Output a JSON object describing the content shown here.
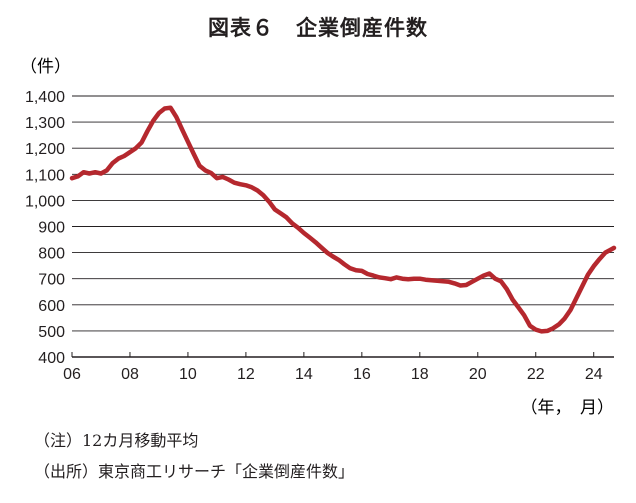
{
  "figure": {
    "title_num": "図表６",
    "title_text": "企業倒産件数",
    "note": "（注）12カ月移動平均",
    "source": "（出所）東京商工リサーチ「企業倒産件数」"
  },
  "chart_data": {
    "type": "line",
    "ylabel": "（件）",
    "xlabel": "（年，　月）",
    "ylim": [
      400,
      1400
    ],
    "xlim": [
      2006,
      2024.7
    ],
    "yticks": [
      "400",
      "500",
      "600",
      "700",
      "800",
      "900",
      "1,000",
      "1,100",
      "1,200",
      "1,300",
      "1,400"
    ],
    "xticks": [
      "06",
      "08",
      "10",
      "12",
      "14",
      "16",
      "18",
      "20",
      "22",
      "24"
    ],
    "grid": "horizontal",
    "series": [
      {
        "color": "#b5282e",
        "x": [
          2006.0,
          2006.2,
          2006.4,
          2006.6,
          2006.8,
          2007.0,
          2007.2,
          2007.4,
          2007.6,
          2007.8,
          2008.0,
          2008.2,
          2008.4,
          2008.6,
          2008.8,
          2009.0,
          2009.2,
          2009.4,
          2009.6,
          2009.8,
          2010.0,
          2010.2,
          2010.4,
          2010.6,
          2010.8,
          2011.0,
          2011.2,
          2011.4,
          2011.6,
          2011.8,
          2012.0,
          2012.2,
          2012.4,
          2012.6,
          2012.8,
          2013.0,
          2013.2,
          2013.4,
          2013.6,
          2013.8,
          2014.0,
          2014.2,
          2014.4,
          2014.6,
          2014.8,
          2015.0,
          2015.2,
          2015.4,
          2015.6,
          2015.8,
          2016.0,
          2016.2,
          2016.4,
          2016.6,
          2016.8,
          2017.0,
          2017.2,
          2017.4,
          2017.6,
          2017.8,
          2018.0,
          2018.2,
          2018.4,
          2018.6,
          2018.8,
          2019.0,
          2019.2,
          2019.4,
          2019.6,
          2019.8,
          2020.0,
          2020.2,
          2020.4,
          2020.6,
          2020.8,
          2021.0,
          2021.2,
          2021.4,
          2021.6,
          2021.8,
          2022.0,
          2022.2,
          2022.4,
          2022.6,
          2022.8,
          2023.0,
          2023.2,
          2023.4,
          2023.6,
          2023.8,
          2024.0,
          2024.2,
          2024.4,
          2024.6,
          2024.7
        ],
        "values": [
          1085,
          1092,
          1108,
          1103,
          1108,
          1103,
          1115,
          1143,
          1160,
          1170,
          1185,
          1200,
          1222,
          1265,
          1305,
          1335,
          1352,
          1355,
          1320,
          1272,
          1225,
          1178,
          1133,
          1115,
          1105,
          1085,
          1090,
          1080,
          1068,
          1062,
          1058,
          1050,
          1038,
          1020,
          995,
          965,
          950,
          935,
          912,
          895,
          875,
          858,
          840,
          820,
          800,
          785,
          772,
          755,
          740,
          732,
          730,
          718,
          712,
          705,
          702,
          698,
          705,
          700,
          698,
          700,
          700,
          696,
          694,
          692,
          690,
          688,
          682,
          674,
          676,
          688,
          700,
          712,
          720,
          700,
          690,
          660,
          620,
          590,
          560,
          520,
          505,
          498,
          500,
          510,
          525,
          548,
          580,
          625,
          670,
          715,
          748,
          775,
          800,
          812,
          818
        ]
      }
    ]
  }
}
